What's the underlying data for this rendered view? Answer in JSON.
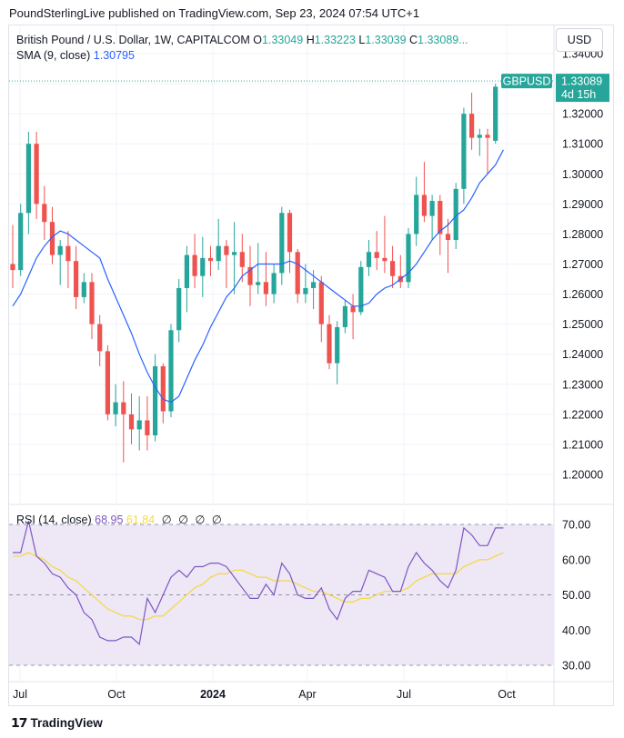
{
  "header": {
    "caption": "PoundSterlingLive published on TradingView.com, Sep 23, 2024 07:54 UTC+1"
  },
  "legend": {
    "symbol": "British Pound / U.S. Dollar, 1W, CAPITALCOM",
    "o_label": "O",
    "o_val": "1.33049",
    "h_label": "H",
    "h_val": "1.33223",
    "l_label": "L",
    "l_val": "1.33039",
    "c_label": "C",
    "c_val": "1.33089",
    "ellipsis": "...",
    "sma_label": "SMA (9, close)",
    "sma_val": "1.30795"
  },
  "currency_button": "USD",
  "price_badge": {
    "symbol": "GBPUSD",
    "price": "1.33089",
    "countdown": "4d 15h"
  },
  "rsi_legend": {
    "label": "RSI (14, close)",
    "rsi_val": "68.95",
    "ma_val": "61.84",
    "na_symbols": [
      "∅",
      "∅",
      "∅",
      "∅"
    ]
  },
  "footer": {
    "brand": "TradingView"
  },
  "colors": {
    "up": "#26a69a",
    "down": "#ef5350",
    "sma": "#2962ff",
    "rsi": "#7e57c2",
    "rsi_ma": "#f5d949",
    "rsi_band": "#ede7f6"
  },
  "chart_data": [
    {
      "type": "candlestick",
      "title": "British Pound / U.S. Dollar, 1W, CAPITALCOM",
      "ylim": [
        1.19,
        1.34
      ],
      "y_ticks": [
        "1.34000",
        "1.33000",
        "1.32000",
        "1.31000",
        "1.30000",
        "1.29000",
        "1.28000",
        "1.27000",
        "1.26000",
        "1.25000",
        "1.24000",
        "1.23000",
        "1.22000",
        "1.21000",
        "1.20000"
      ],
      "x_ticks": [
        "Jul",
        "Oct",
        "2024",
        "Apr",
        "Jul",
        "Oct"
      ],
      "grid": true,
      "series_ohlc": [
        [
          1.27,
          1.283,
          1.262,
          1.268
        ],
        [
          1.268,
          1.29,
          1.266,
          1.287
        ],
        [
          1.287,
          1.314,
          1.28,
          1.31
        ],
        [
          1.31,
          1.314,
          1.285,
          1.29
        ],
        [
          1.29,
          1.296,
          1.278,
          1.284
        ],
        [
          1.284,
          1.289,
          1.27,
          1.273
        ],
        [
          1.273,
          1.278,
          1.263,
          1.276
        ],
        [
          1.276,
          1.281,
          1.262,
          1.271
        ],
        [
          1.271,
          1.276,
          1.255,
          1.259
        ],
        [
          1.259,
          1.267,
          1.257,
          1.264
        ],
        [
          1.264,
          1.267,
          1.245,
          1.25
        ],
        [
          1.25,
          1.253,
          1.236,
          1.241
        ],
        [
          1.241,
          1.243,
          1.218,
          1.22
        ],
        [
          1.22,
          1.23,
          1.216,
          1.224
        ],
        [
          1.224,
          1.231,
          1.204,
          1.22
        ],
        [
          1.22,
          1.227,
          1.21,
          1.215
        ],
        [
          1.215,
          1.226,
          1.208,
          1.218
        ],
        [
          1.218,
          1.226,
          1.208,
          1.213
        ],
        [
          1.213,
          1.24,
          1.211,
          1.236
        ],
        [
          1.236,
          1.237,
          1.217,
          1.221
        ],
        [
          1.221,
          1.25,
          1.219,
          1.248
        ],
        [
          1.248,
          1.265,
          1.244,
          1.262
        ],
        [
          1.262,
          1.276,
          1.254,
          1.273
        ],
        [
          1.273,
          1.28,
          1.262,
          1.266
        ],
        [
          1.266,
          1.279,
          1.259,
          1.272
        ],
        [
          1.272,
          1.276,
          1.266,
          1.271
        ],
        [
          1.271,
          1.285,
          1.268,
          1.276
        ],
        [
          1.276,
          1.278,
          1.262,
          1.273
        ],
        [
          1.273,
          1.284,
          1.26,
          1.274
        ],
        [
          1.274,
          1.28,
          1.264,
          1.269
        ],
        [
          1.269,
          1.276,
          1.256,
          1.263
        ],
        [
          1.263,
          1.277,
          1.26,
          1.264
        ],
        [
          1.264,
          1.274,
          1.256,
          1.26
        ],
        [
          1.26,
          1.27,
          1.257,
          1.267
        ],
        [
          1.267,
          1.289,
          1.263,
          1.287
        ],
        [
          1.287,
          1.288,
          1.267,
          1.274
        ],
        [
          1.274,
          1.275,
          1.257,
          1.26
        ],
        [
          1.26,
          1.27,
          1.257,
          1.262
        ],
        [
          1.262,
          1.268,
          1.255,
          1.264
        ],
        [
          1.264,
          1.266,
          1.244,
          1.25
        ],
        [
          1.25,
          1.253,
          1.235,
          1.237
        ],
        [
          1.237,
          1.251,
          1.23,
          1.249
        ],
        [
          1.249,
          1.258,
          1.247,
          1.256
        ],
        [
          1.256,
          1.26,
          1.245,
          1.254
        ],
        [
          1.254,
          1.271,
          1.253,
          1.269
        ],
        [
          1.269,
          1.278,
          1.266,
          1.274
        ],
        [
          1.274,
          1.281,
          1.268,
          1.272
        ],
        [
          1.272,
          1.286,
          1.267,
          1.271
        ],
        [
          1.271,
          1.276,
          1.262,
          1.266
        ],
        [
          1.266,
          1.273,
          1.262,
          1.264
        ],
        [
          1.264,
          1.282,
          1.262,
          1.28
        ],
        [
          1.28,
          1.299,
          1.276,
          1.293
        ],
        [
          1.293,
          1.304,
          1.284,
          1.286
        ],
        [
          1.286,
          1.293,
          1.278,
          1.291
        ],
        [
          1.291,
          1.293,
          1.273,
          1.28
        ],
        [
          1.28,
          1.285,
          1.267,
          1.278
        ],
        [
          1.278,
          1.297,
          1.275,
          1.295
        ],
        [
          1.295,
          1.322,
          1.29,
          1.32
        ],
        [
          1.32,
          1.327,
          1.308,
          1.312
        ],
        [
          1.312,
          1.315,
          1.306,
          1.313
        ],
        [
          1.313,
          1.315,
          1.3,
          1.312
        ],
        [
          1.311,
          1.33,
          1.31,
          1.329
        ],
        [
          1.3305,
          1.3322,
          1.3304,
          1.3309
        ]
      ],
      "sma_9": [
        1.256,
        1.26,
        1.266,
        1.272,
        1.276,
        1.279,
        1.281,
        1.28,
        1.278,
        1.276,
        1.274,
        1.272,
        1.265,
        1.259,
        1.253,
        1.247,
        1.24,
        1.234,
        1.229,
        1.225,
        1.224,
        1.226,
        1.232,
        1.238,
        1.243,
        1.249,
        1.254,
        1.259,
        1.262,
        1.266,
        1.268,
        1.27,
        1.27,
        1.27,
        1.27,
        1.271,
        1.27,
        1.268,
        1.266,
        1.264,
        1.262,
        1.26,
        1.258,
        1.256,
        1.256,
        1.257,
        1.26,
        1.262,
        1.263,
        1.265,
        1.267,
        1.27,
        1.274,
        1.278,
        1.281,
        1.283,
        1.286,
        1.288,
        1.292,
        1.297,
        1.3,
        1.303,
        1.308
      ]
    },
    {
      "type": "line",
      "title": "RSI (14, close)",
      "ylim": [
        30,
        70
      ],
      "y_ticks": [
        "70.00",
        "60.00",
        "50.00",
        "40.00",
        "30.00"
      ],
      "bands": [
        30,
        50,
        70
      ],
      "rsi": [
        62,
        62,
        71,
        61,
        59,
        56,
        55,
        52,
        50,
        45,
        43,
        38,
        37,
        37,
        38,
        38,
        36,
        49,
        45,
        50,
        55,
        57,
        55,
        58,
        58,
        59,
        59,
        58,
        55,
        52,
        49,
        49,
        53,
        50,
        59,
        56,
        50,
        49,
        49,
        52,
        46,
        43,
        49,
        51,
        51,
        57,
        56,
        55,
        51,
        51,
        58,
        62,
        59,
        57,
        54,
        52,
        57,
        69,
        67,
        64,
        64,
        69,
        69
      ],
      "rsi_ma": [
        61,
        61,
        62,
        61,
        60,
        58,
        57,
        55,
        54,
        52,
        50,
        48,
        46,
        45,
        44,
        44,
        43,
        43,
        44,
        44,
        46,
        48,
        50,
        52,
        53,
        55,
        56,
        56,
        57,
        57,
        56,
        55,
        55,
        54,
        54,
        54,
        53,
        52,
        51,
        51,
        50,
        49,
        48,
        48,
        49,
        49,
        50,
        51,
        51,
        51,
        52,
        54,
        55,
        56,
        56,
        56,
        56,
        58,
        59,
        60,
        60,
        61,
        62
      ]
    }
  ]
}
